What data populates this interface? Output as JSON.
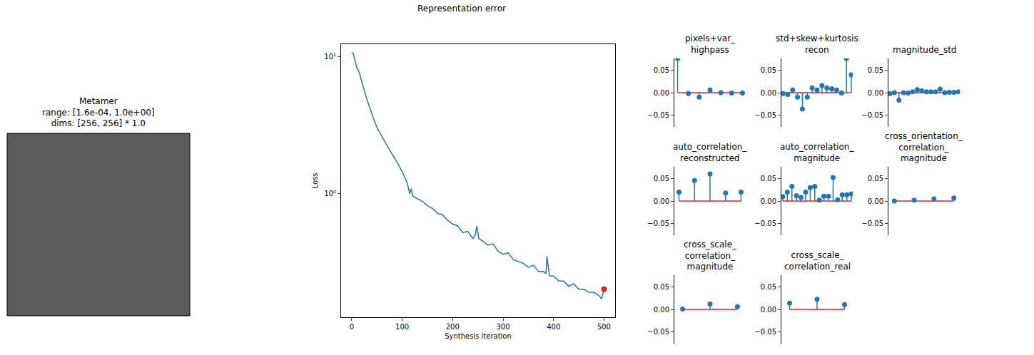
{
  "chart_data": [
    {
      "type": "image",
      "title": [
        "Metamer",
        "range: [1.6e-04, 1.0e+00]",
        "dims: [256, 256] * 1.0"
      ]
    },
    {
      "type": "line",
      "title": "Representation error",
      "xlabel": "Synthesis iteration",
      "ylabel": "Loss",
      "log": "y",
      "color": "#1f77b4",
      "x": [
        0,
        3,
        6,
        10,
        15,
        20,
        25,
        30,
        35,
        40,
        45,
        50,
        60,
        70,
        80,
        90,
        100,
        110,
        115,
        118,
        121,
        130,
        140,
        150,
        160,
        170,
        180,
        190,
        200,
        210,
        220,
        230,
        240,
        245,
        248,
        252,
        260,
        270,
        280,
        290,
        300,
        310,
        320,
        330,
        340,
        350,
        360,
        370,
        380,
        385,
        387,
        389,
        392,
        400,
        410,
        420,
        430,
        440,
        450,
        460,
        470,
        480,
        490,
        495,
        500
      ],
      "values": [
        10.8,
        10.6,
        9.6,
        8.4,
        7.7,
        6.7,
        5.7,
        4.9,
        4.3,
        3.8,
        3.4,
        3.05,
        2.6,
        2.25,
        1.95,
        1.7,
        1.45,
        1.2,
        1.0,
        1.09,
        0.96,
        0.92,
        0.88,
        0.82,
        0.78,
        0.72,
        0.7,
        0.64,
        0.6,
        0.58,
        0.52,
        0.53,
        0.47,
        0.5,
        0.58,
        0.47,
        0.45,
        0.42,
        0.43,
        0.38,
        0.36,
        0.37,
        0.33,
        0.32,
        0.31,
        0.29,
        0.3,
        0.27,
        0.27,
        0.26,
        0.35,
        0.3,
        0.25,
        0.25,
        0.23,
        0.23,
        0.21,
        0.22,
        0.2,
        0.2,
        0.19,
        0.19,
        0.18,
        0.17,
        0.2
      ],
      "marked_point": {
        "x": 500,
        "color": "#d62728"
      },
      "xlim": [
        -21,
        522
      ],
      "xticks": [
        0,
        100,
        200,
        300,
        400,
        500
      ],
      "ylim": [
        0.125,
        12.4
      ],
      "yticks": [
        {
          "value": 1,
          "label": "10⁰"
        },
        {
          "value": 10,
          "label": "10¹"
        }
      ]
    },
    {
      "type": "stem",
      "title": "pixels+var_highpass",
      "color": "#1f77b4",
      "tick_labels": "y",
      "values": [
        0.077,
        -0.002,
        -0.01,
        0.006,
        0.0,
        -0.001,
        -0.001
      ],
      "ylim": [
        -0.077,
        0.077
      ],
      "yticks": [
        {
          "value": -0.05,
          "label": "−0.05"
        },
        {
          "value": 0,
          "label": "0.00"
        },
        0.05
      ]
    },
    {
      "type": "stem",
      "title": "std+skew+kurtosis recon",
      "color": "#1f77b4",
      "tick_labels": "y",
      "values": [
        -0.002,
        -0.004,
        0.006,
        -0.01,
        -0.037,
        -0.01,
        0.011,
        0.006,
        0.016,
        0.011,
        0.009,
        0.006,
        -0.001,
        0.077,
        0.04
      ],
      "ylim": [
        -0.077,
        0.077
      ],
      "yticks": [
        {
          "value": -0.05,
          "label": "−0.05"
        },
        {
          "value": 0,
          "label": "0.00"
        },
        0.05
      ]
    },
    {
      "type": "stem",
      "title": "magnitude_std",
      "color": "#1f77b4",
      "tick_labels": "y",
      "values": [
        -0.002,
        0.0,
        -0.017,
        0.0,
        -0.001,
        0.002,
        0.007,
        0.004,
        0.002,
        0.002,
        0.002,
        0.008,
        0.0,
        0.001,
        0.001,
        0.002
      ],
      "ylim": [
        -0.077,
        0.077
      ],
      "yticks": [
        {
          "value": -0.05,
          "label": "−0.05"
        },
        {
          "value": 0,
          "label": "0.00"
        },
        0.05
      ]
    },
    {
      "type": "stem",
      "title": "auto_correlation_reconstructed",
      "color": "#1f77b4",
      "tick_labels": "y",
      "values": [
        0.02,
        0.046,
        0.061,
        0.018,
        0.02
      ],
      "ylim": [
        -0.077,
        0.077
      ],
      "yticks": [
        {
          "value": -0.05,
          "label": "−0.05"
        },
        {
          "value": 0,
          "label": "0.00"
        },
        0.05
      ]
    },
    {
      "type": "stem",
      "title": "auto_correlation_magnitude",
      "color": "#1f77b4",
      "tick_labels": "y",
      "values": [
        0.01,
        0.02,
        0.033,
        0.012,
        0.008,
        0.02,
        0.03,
        0.033,
        0.002,
        0.011,
        0.011,
        0.053,
        0.003,
        0.014,
        0.014,
        0.016
      ],
      "ylim": [
        -0.077,
        0.077
      ],
      "yticks": [
        {
          "value": -0.05,
          "label": "−0.05"
        },
        {
          "value": 0,
          "label": "0.00"
        },
        0.05
      ]
    },
    {
      "type": "stem",
      "title": "cross_orientation_correlation_magnitude",
      "color": "#1f77b4",
      "tick_labels": "y",
      "values": [
        0.0,
        0.002,
        0.005,
        0.007
      ],
      "ylim": [
        -0.077,
        0.077
      ],
      "yticks": [
        {
          "value": -0.05,
          "label": "−0.05"
        },
        {
          "value": 0,
          "label": "0.00"
        },
        0.05
      ]
    },
    {
      "type": "stem",
      "title": "cross_scale_correlation_magnitude",
      "color": "#1f77b4",
      "tick_labels": "y",
      "values": [
        0.001,
        0.012,
        0.006
      ],
      "ylim": [
        -0.077,
        0.077
      ],
      "yticks": [
        {
          "value": -0.05,
          "label": "−0.05"
        },
        {
          "value": 0,
          "label": "0.00"
        },
        0.05
      ]
    },
    {
      "type": "stem",
      "title": "cross_scale_correlation_real",
      "color": "#1f77b4",
      "tick_labels": "y",
      "values": [
        0.014,
        0.023,
        0.011
      ],
      "ylim": [
        -0.077,
        0.077
      ],
      "yticks": [
        {
          "value": -0.05,
          "label": "−0.05"
        },
        {
          "value": 0,
          "label": "0.00"
        },
        0.05
      ]
    }
  ]
}
